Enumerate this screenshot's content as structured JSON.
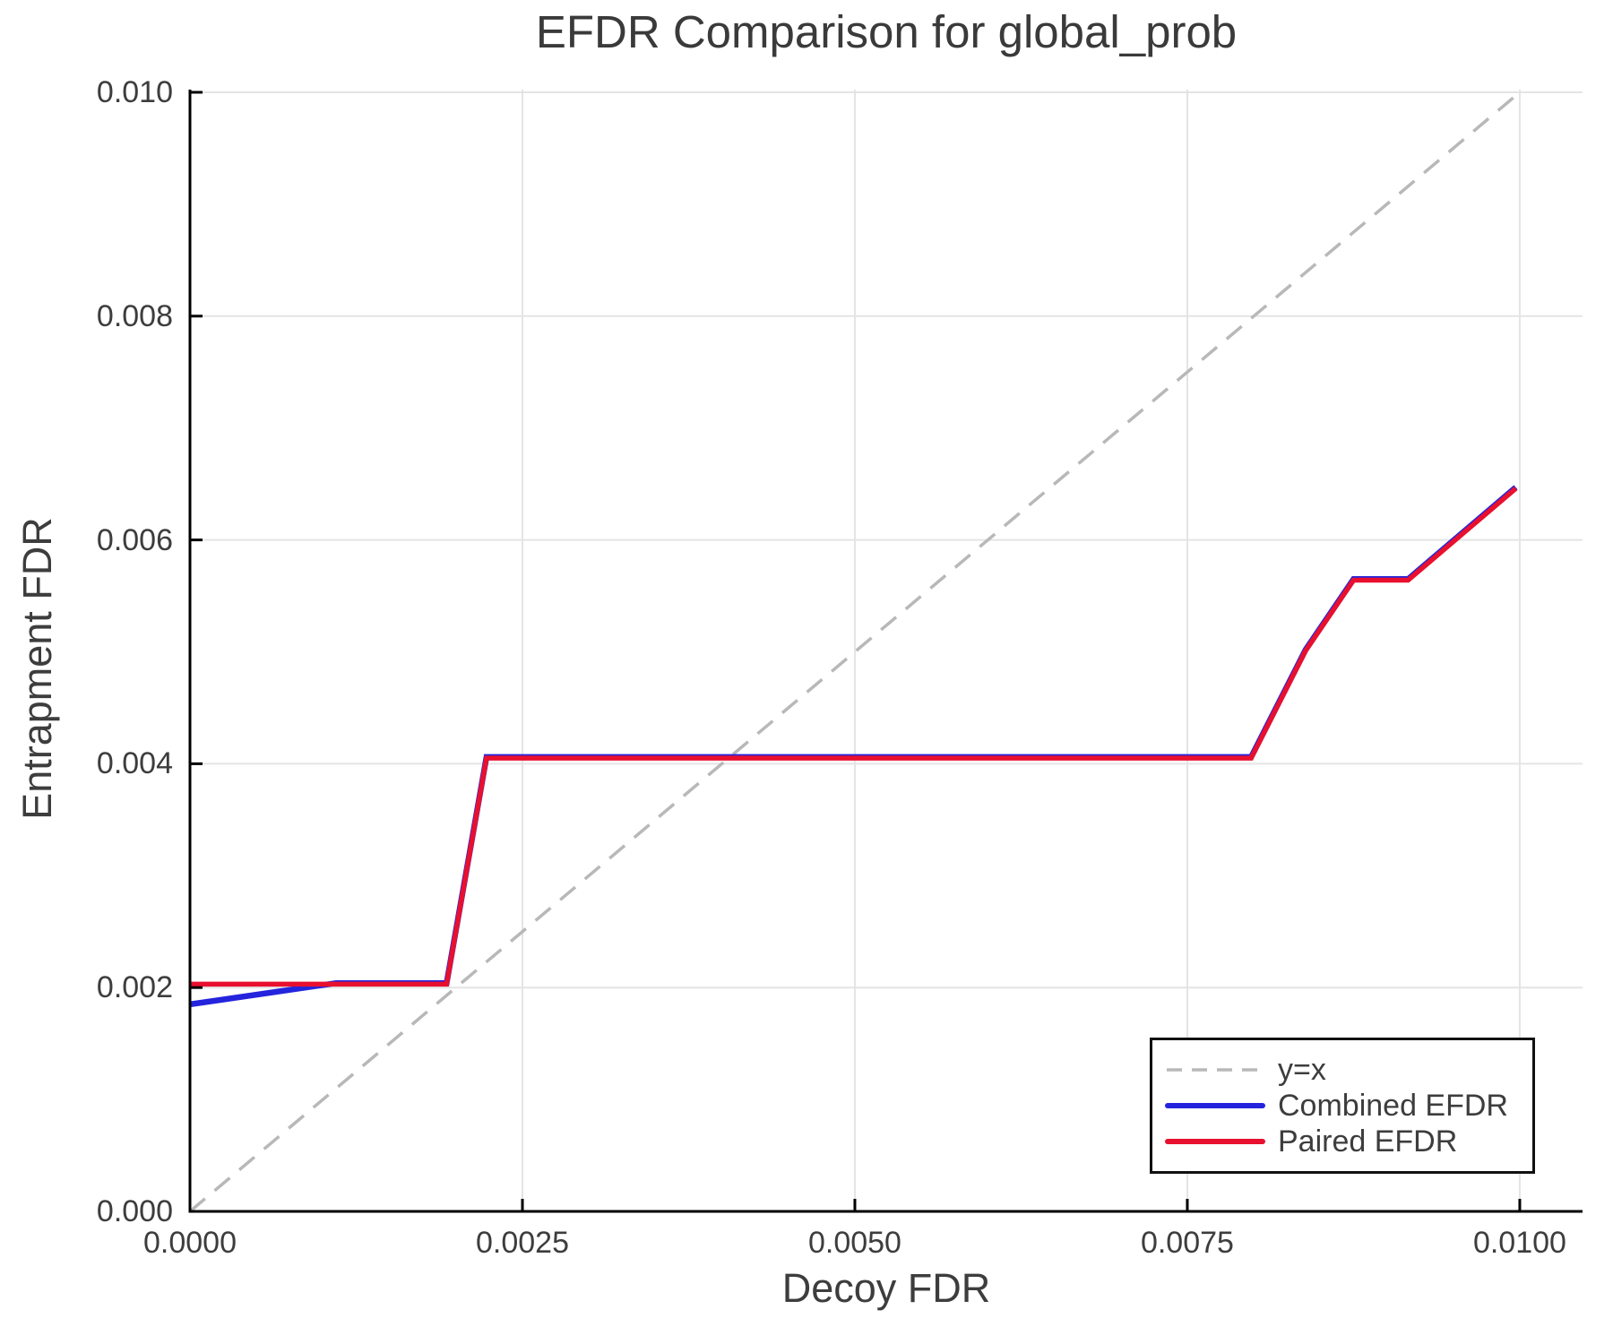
{
  "title": "EFDR Comparison for global_prob",
  "chart_data": {
    "type": "line",
    "title": "EFDR Comparison for global_prob",
    "xlabel": "Decoy FDR",
    "ylabel": "Entrapment FDR",
    "xlim": [
      0,
      0.010472
    ],
    "ylim": [
      0,
      0.010024
    ],
    "grid": true,
    "background": "#ffffff",
    "axis_color": "#000000",
    "grid_color": "#e4e4e4",
    "text_color": "#3d3d3d",
    "x_ticks": {
      "values": [
        0,
        0.0025,
        0.005,
        0.0075,
        0.01
      ],
      "labels": [
        "0.0000",
        "0.0025",
        "0.0050",
        "0.0075",
        "0.0100"
      ]
    },
    "y_ticks": {
      "values": [
        0,
        0.002,
        0.004,
        0.006,
        0.008,
        0.01
      ],
      "labels": [
        "0.000",
        "0.002",
        "0.004",
        "0.006",
        "0.008",
        "0.010"
      ]
    },
    "legend": {
      "position": "bottom-right",
      "border_color": "#111111"
    },
    "series": [
      {
        "name": "y=x",
        "color": "#b8b8b8",
        "style": "dashed",
        "width": 3.5,
        "points": [
          [
            0,
            0
          ],
          [
            0.01,
            0.01
          ]
        ]
      },
      {
        "name": "Combined EFDR",
        "color": "#2424dd",
        "style": "solid",
        "width": 6.5,
        "points": [
          [
            0,
            0.00185
          ],
          [
            0.0011,
            0.00204
          ],
          [
            0.00193,
            0.00204
          ],
          [
            0.00223,
            0.00406
          ],
          [
            0.00798,
            0.00406
          ],
          [
            0.00839,
            0.00502
          ],
          [
            0.00875,
            0.00565
          ],
          [
            0.00916,
            0.00565
          ],
          [
            0.00997,
            0.00647
          ]
        ]
      },
      {
        "name": "Paired EFDR",
        "color": "#e8102e",
        "style": "solid",
        "width": 5.5,
        "points": [
          [
            0,
            0.00204
          ],
          [
            0.00193,
            0.00204
          ],
          [
            0.00223,
            0.00406
          ],
          [
            0.00798,
            0.00406
          ],
          [
            0.00839,
            0.00502
          ],
          [
            0.00875,
            0.00565
          ],
          [
            0.00916,
            0.00565
          ],
          [
            0.00997,
            0.00647
          ]
        ]
      }
    ]
  }
}
